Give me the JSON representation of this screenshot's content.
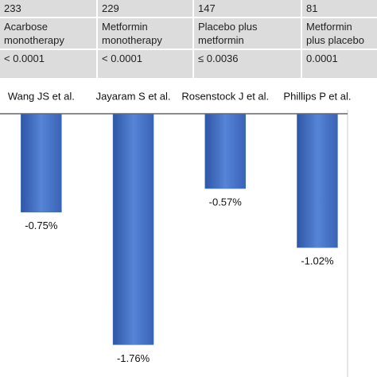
{
  "table": {
    "rows": [
      [
        "233",
        "229",
        "147",
        "81"
      ],
      [
        "Acarbose monotherapy",
        "Metformin monotherapy",
        "Placebo plus metformin",
        "Metformin plus placebo"
      ],
      [
        "< 0.0001",
        "< 0.0001",
        "≤ 0.0036",
        "0.0001"
      ]
    ]
  },
  "chart_data": {
    "type": "bar",
    "categories": [
      "Wang JS et al.",
      "Jayaram S et al.",
      "Rosenstock J et al.",
      "Phillips P et al."
    ],
    "values": [
      -0.75,
      -1.76,
      -0.57,
      -1.02
    ],
    "value_labels": [
      "-0.75%",
      "-1.76%",
      "-0.57%",
      "-1.02%"
    ],
    "color": "#4470c2",
    "ylim": [
      -2,
      0
    ]
  }
}
